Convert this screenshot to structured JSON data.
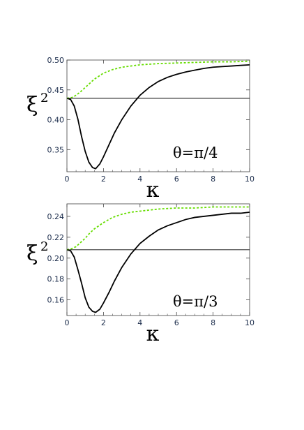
{
  "chart_data": [
    {
      "type": "line",
      "xlabel": "κ",
      "ylabel": "ξ",
      "ylabel_superscript": "2",
      "annotation": "θ=π/4",
      "xlim": [
        0,
        10
      ],
      "ylim": [
        0.313,
        0.5
      ],
      "xticks": [
        0,
        2,
        4,
        6,
        8,
        10
      ],
      "yticks": [
        0.35,
        0.4,
        0.45,
        0.5
      ],
      "ytick_labels": [
        "0.35",
        "0.40",
        "0.45",
        "0.50"
      ],
      "grid": false,
      "series": [
        {
          "style": "solid-black",
          "color": "#000000",
          "x": [
            0,
            0.2,
            0.4,
            0.6,
            0.8,
            1.0,
            1.2,
            1.4,
            1.57,
            1.8,
            2.0,
            2.3,
            2.6,
            3.0,
            3.5,
            4.0,
            4.5,
            5.0,
            5.5,
            6.0,
            6.5,
            7.0,
            7.5,
            8.0,
            8.5,
            9.0,
            9.5,
            10.0
          ],
          "y": [
            0.436,
            0.434,
            0.423,
            0.401,
            0.372,
            0.347,
            0.329,
            0.32,
            0.318,
            0.326,
            0.338,
            0.358,
            0.378,
            0.4,
            0.423,
            0.441,
            0.454,
            0.464,
            0.471,
            0.476,
            0.48,
            0.483,
            0.486,
            0.488,
            0.489,
            0.49,
            0.491,
            0.492
          ]
        },
        {
          "style": "dashed-green",
          "color": "#66dd00",
          "x": [
            0,
            0.25,
            0.5,
            0.75,
            1.0,
            1.25,
            1.5,
            1.75,
            2.0,
            2.5,
            3.0,
            3.5,
            4.0,
            5.0,
            6.0,
            7.0,
            8.0,
            9.0,
            10.0
          ],
          "y": [
            0.436,
            0.437,
            0.441,
            0.447,
            0.454,
            0.461,
            0.468,
            0.473,
            0.478,
            0.484,
            0.488,
            0.49,
            0.492,
            0.494,
            0.495,
            0.496,
            0.497,
            0.497,
            0.498
          ]
        },
        {
          "style": "thin-horizontal",
          "color": "#000000",
          "x": [
            0,
            10
          ],
          "y": [
            0.436,
            0.436
          ]
        }
      ]
    },
    {
      "type": "line",
      "xlabel": "κ",
      "ylabel": "ξ",
      "ylabel_superscript": "2",
      "annotation": "θ=π/3",
      "xlim": [
        0,
        10
      ],
      "ylim": [
        0.145,
        0.252
      ],
      "xticks": [
        0,
        2,
        4,
        6,
        8,
        10
      ],
      "yticks": [
        0.16,
        0.18,
        0.2,
        0.22,
        0.24
      ],
      "ytick_labels": [
        "0.16",
        "0.18",
        "0.20",
        "0.22",
        "0.24"
      ],
      "grid": false,
      "series": [
        {
          "style": "solid-black",
          "color": "#000000",
          "x": [
            0,
            0.2,
            0.4,
            0.6,
            0.8,
            1.0,
            1.2,
            1.4,
            1.57,
            1.8,
            2.0,
            2.3,
            2.6,
            3.0,
            3.5,
            4.0,
            4.5,
            5.0,
            5.5,
            6.0,
            6.5,
            7.0,
            7.5,
            8.0,
            8.5,
            9.0,
            9.5,
            10.0
          ],
          "y": [
            0.208,
            0.207,
            0.201,
            0.189,
            0.176,
            0.162,
            0.153,
            0.149,
            0.148,
            0.151,
            0.157,
            0.167,
            0.178,
            0.191,
            0.204,
            0.214,
            0.221,
            0.227,
            0.231,
            0.234,
            0.237,
            0.239,
            0.24,
            0.241,
            0.242,
            0.243,
            0.243,
            0.244
          ]
        },
        {
          "style": "dashed-green",
          "color": "#66dd00",
          "x": [
            0,
            0.25,
            0.5,
            0.75,
            1.0,
            1.25,
            1.5,
            1.75,
            2.0,
            2.5,
            3.0,
            3.5,
            4.0,
            5.0,
            6.0,
            7.0,
            8.0,
            9.0,
            10.0
          ],
          "y": [
            0.208,
            0.209,
            0.211,
            0.215,
            0.219,
            0.224,
            0.228,
            0.231,
            0.234,
            0.239,
            0.242,
            0.244,
            0.245,
            0.247,
            0.248,
            0.248,
            0.249,
            0.249,
            0.249
          ]
        },
        {
          "style": "thin-horizontal",
          "color": "#000000",
          "x": [
            0,
            10
          ],
          "y": [
            0.208,
            0.208
          ]
        }
      ]
    }
  ]
}
